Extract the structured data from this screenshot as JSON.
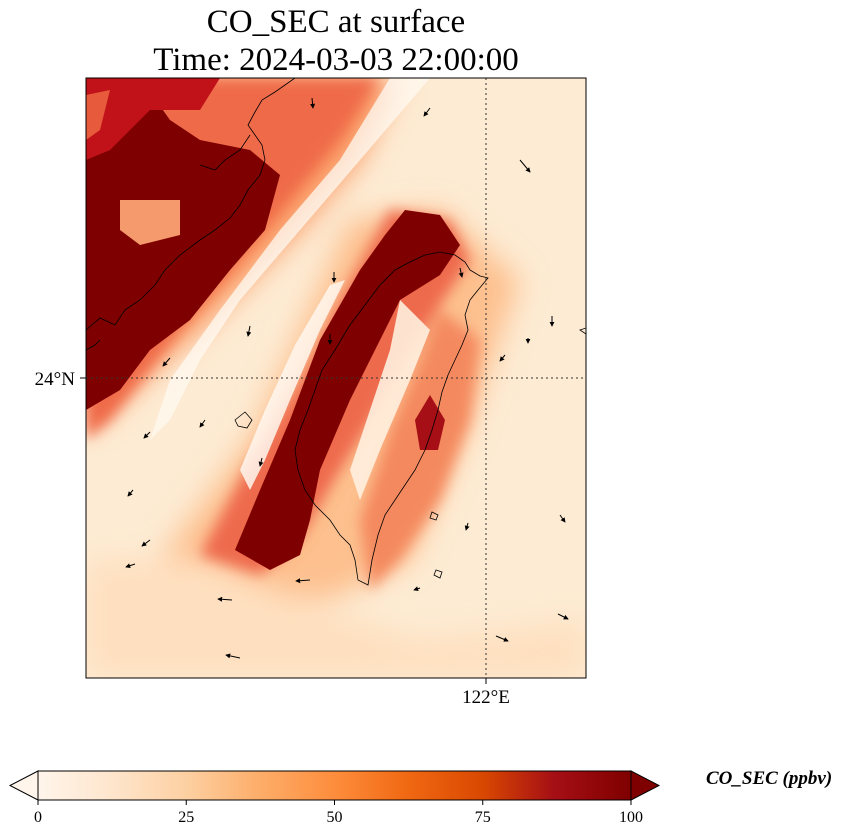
{
  "title": {
    "line1": "CO_SEC at surface",
    "line2": "Time: 2024-03-03 22:00:00"
  },
  "map": {
    "lat_label": "24°N",
    "lon_label": "122°E",
    "field_colors": {
      "low": "#fff5eb",
      "mid": "#fdae6b",
      "high": "#e6550d",
      "max": "#7f0000"
    }
  },
  "colorbar": {
    "label": "CO_SEC (ppbv)",
    "ticks": [
      "0",
      "25",
      "50",
      "75",
      "100"
    ],
    "min": 0,
    "max": 100,
    "colormap": [
      "#fff5eb",
      "#fee6ce",
      "#fdd0a2",
      "#fdae6b",
      "#fd8d3c",
      "#f16913",
      "#d94801",
      "#a50f15",
      "#7f0000"
    ]
  }
}
